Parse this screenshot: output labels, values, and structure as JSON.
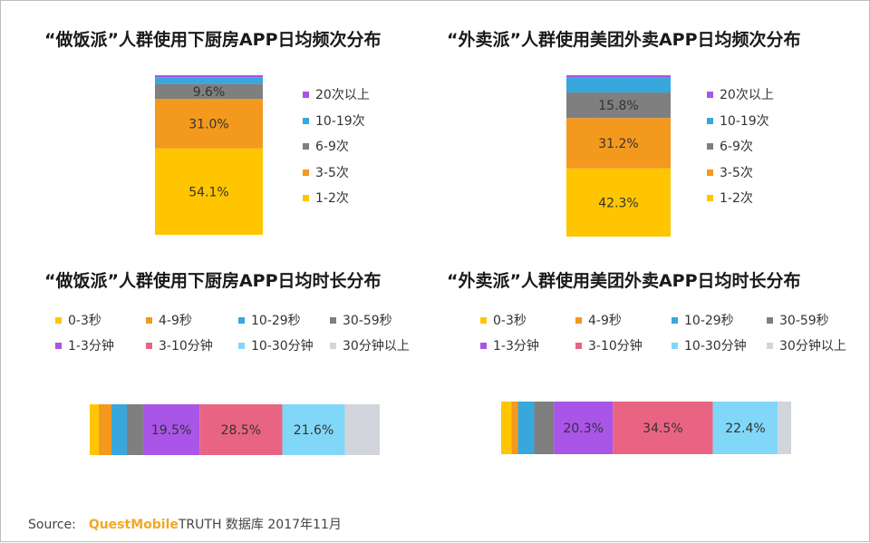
{
  "colors": {
    "c_0_3s": "#FFC600",
    "c_4_9s": "#F39A1E",
    "c_10_29s": "#38A7DB",
    "c_30_59s": "#7F7F7F",
    "c_1_3m": "#A855E8",
    "c_3_10m": "#E96482",
    "c_10_30m": "#80D7F7",
    "c_30m_plus": "#D3D5DD"
  },
  "freq_legend": [
    {
      "label": "20次以上",
      "color": "#A855E8"
    },
    {
      "label": "10-19次",
      "color": "#38A7DB"
    },
    {
      "label": "6-9次",
      "color": "#7F7F7F"
    },
    {
      "label": "3-5次",
      "color": "#F39A1E"
    },
    {
      "label": "1-2次",
      "color": "#FFC600"
    }
  ],
  "dur_legend": [
    {
      "label": "0-3秒",
      "color": "#FFC600"
    },
    {
      "label": "4-9秒",
      "color": "#F39A1E"
    },
    {
      "label": "10-29秒",
      "color": "#38A7DB"
    },
    {
      "label": "30-59秒",
      "color": "#7F7F7F"
    },
    {
      "label": "1-3分钟",
      "color": "#A855E8"
    },
    {
      "label": "3-10分钟",
      "color": "#E96482"
    },
    {
      "label": "10-30分钟",
      "color": "#80D7F7"
    },
    {
      "label": "30分钟以上",
      "color": "#D3D5DD"
    }
  ],
  "chart_data": [
    {
      "type": "bar",
      "stacked": true,
      "orientation": "vertical",
      "title": "“做饭派”人群使用下厨房APP日均频次分布",
      "ylim": [
        0,
        100
      ],
      "series": [
        {
          "name": "1-2次",
          "value": 54.1,
          "label": "54.1%",
          "color": "#FFC600"
        },
        {
          "name": "3-5次",
          "value": 31.0,
          "label": "31.0%",
          "color": "#F39A1E"
        },
        {
          "name": "6-9次",
          "value": 9.6,
          "label": "9.6%",
          "color": "#7F7F7F"
        },
        {
          "name": "10-19次",
          "value": 4.0,
          "label": "",
          "color": "#38A7DB"
        },
        {
          "name": "20次以上",
          "value": 1.3,
          "label": "",
          "color": "#A855E8"
        }
      ]
    },
    {
      "type": "bar",
      "stacked": true,
      "orientation": "vertical",
      "title": "“外卖派”人群使用美团外卖APP日均频次分布",
      "ylim": [
        0,
        100
      ],
      "series": [
        {
          "name": "1-2次",
          "value": 42.3,
          "label": "42.3%",
          "color": "#FFC600"
        },
        {
          "name": "3-5次",
          "value": 31.2,
          "label": "31.2%",
          "color": "#F39A1E"
        },
        {
          "name": "6-9次",
          "value": 15.8,
          "label": "15.8%",
          "color": "#7F7F7F"
        },
        {
          "name": "10-19次",
          "value": 9.2,
          "label": "",
          "color": "#38A7DB"
        },
        {
          "name": "20次以上",
          "value": 1.5,
          "label": "",
          "color": "#A855E8"
        }
      ]
    },
    {
      "type": "bar",
      "stacked": true,
      "orientation": "horizontal",
      "title": "“做饭派”人群使用下厨房APP日均时长分布",
      "xlim": [
        0,
        100
      ],
      "series": [
        {
          "name": "0-3秒",
          "value": 3.1,
          "label": "",
          "color": "#FFC600"
        },
        {
          "name": "4-9秒",
          "value": 4.4,
          "label": "",
          "color": "#F39A1E"
        },
        {
          "name": "10-29秒",
          "value": 5.3,
          "label": "",
          "color": "#38A7DB"
        },
        {
          "name": "30-59秒",
          "value": 5.6,
          "label": "",
          "color": "#7F7F7F"
        },
        {
          "name": "1-3分钟",
          "value": 19.5,
          "label": "19.5%",
          "color": "#A855E8"
        },
        {
          "name": "3-10分钟",
          "value": 28.5,
          "label": "28.5%",
          "color": "#E96482"
        },
        {
          "name": "10-30分钟",
          "value": 21.6,
          "label": "21.6%",
          "color": "#80D7F7"
        },
        {
          "name": "30分钟以上",
          "value": 12.0,
          "label": "",
          "color": "#D3D5DD"
        }
      ]
    },
    {
      "type": "bar",
      "stacked": true,
      "orientation": "horizontal",
      "title": "“外卖派”人群使用美团外卖APP日均时长分布",
      "xlim": [
        0,
        100
      ],
      "series": [
        {
          "name": "0-3秒",
          "value": 3.5,
          "label": "",
          "color": "#FFC600"
        },
        {
          "name": "4-9秒",
          "value": 2.3,
          "label": "",
          "color": "#F39A1E"
        },
        {
          "name": "10-29秒",
          "value": 5.6,
          "label": "",
          "color": "#38A7DB"
        },
        {
          "name": "30-59秒",
          "value": 6.8,
          "label": "",
          "color": "#7F7F7F"
        },
        {
          "name": "1-3分钟",
          "value": 20.3,
          "label": "20.3%",
          "color": "#A855E8"
        },
        {
          "name": "3-10分钟",
          "value": 34.5,
          "label": "34.5%",
          "color": "#E96482"
        },
        {
          "name": "10-30分钟",
          "value": 22.4,
          "label": "22.4%",
          "color": "#80D7F7"
        },
        {
          "name": "30分钟以上",
          "value": 4.6,
          "label": "",
          "color": "#D3D5DD"
        }
      ]
    }
  ],
  "source": {
    "prefix": "Source:",
    "brand": "QuestMobile",
    "rest": "TRUTH 数据库 2017年11月"
  }
}
